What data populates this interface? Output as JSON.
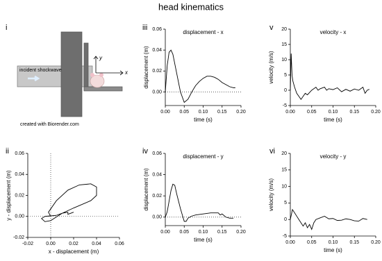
{
  "title": "head kinematics",
  "diagram": {
    "panel": "i",
    "shock_label": "incident shockwave",
    "credit": "created with Biorender.com",
    "axis_x": "x",
    "axis_y": "y"
  },
  "chart_data": [
    {
      "type": "line",
      "panel": "iii",
      "title": "displacement - x",
      "xlabel": "time (s)",
      "ylabel": "displacement (m)",
      "color": "#000000",
      "zero_line": true,
      "x": [
        0,
        0.005,
        0.01,
        0.015,
        0.02,
        0.03,
        0.04,
        0.05,
        0.06,
        0.07,
        0.08,
        0.09,
        0.1,
        0.11,
        0.12,
        0.13,
        0.14,
        0.15,
        0.16,
        0.17,
        0.18,
        0.185
      ],
      "values": [
        0,
        0.025,
        0.038,
        0.04,
        0.036,
        0.018,
        0,
        -0.01,
        -0.007,
        0,
        0.006,
        0.01,
        0.013,
        0.015,
        0.015,
        0.014,
        0.012,
        0.009,
        0.007,
        0.005,
        0.004,
        0.004
      ],
      "xlim": [
        0,
        0.2
      ],
      "xticks": [
        {
          "value": 0,
          "label": "0.00"
        },
        0.05,
        {
          "value": 0.1,
          "label": "0.10"
        },
        0.15,
        {
          "value": 0.2,
          "label": "0.20"
        }
      ],
      "ylim": [
        -0.013,
        0.06
      ],
      "yticks": [
        {
          "value": 0,
          "label": "0.00"
        },
        0.02,
        0.04,
        0.06
      ]
    },
    {
      "type": "line",
      "panel": "v",
      "title": "velocity - x",
      "xlabel": "time (s)",
      "ylabel": "velocity (m/s)",
      "color": "#000000",
      "x": [
        0,
        0.002,
        0.004,
        0.006,
        0.01,
        0.015,
        0.02,
        0.025,
        0.03,
        0.035,
        0.04,
        0.05,
        0.06,
        0.065,
        0.07,
        0.08,
        0.085,
        0.09,
        0.1,
        0.11,
        0.12,
        0.13,
        0.14,
        0.15,
        0.16,
        0.17,
        0.175,
        0.18,
        0.185
      ],
      "values": [
        0,
        12,
        5,
        3,
        1,
        -1,
        -2,
        -3,
        -2,
        -1,
        -1.5,
        0,
        1,
        0,
        0.5,
        1,
        0,
        0.5,
        0.2,
        0.8,
        -0.5,
        0.3,
        -0.3,
        0.4,
        0,
        1,
        -1,
        0,
        0.3
      ],
      "xlim": [
        0,
        0.2
      ],
      "xticks": [
        {
          "value": 0,
          "label": "0.00"
        },
        0.05,
        {
          "value": 0.1,
          "label": "0.10"
        },
        0.15,
        {
          "value": 0.2,
          "label": "0.20"
        }
      ],
      "ylim": [
        -5,
        20
      ],
      "yticks": [
        -5,
        0,
        5,
        10,
        15,
        20
      ]
    },
    {
      "type": "line",
      "panel": "ii",
      "xlabel": "x - displacement (m)",
      "ylabel": "y - displacement (m)",
      "color": "#000000",
      "zero_line": true,
      "x": [
        0,
        -0.002,
        0.005,
        0.015,
        0.025,
        0.035,
        0.04,
        0.04,
        0.035,
        0.02,
        0.01,
        0,
        -0.005,
        -0.008,
        -0.005,
        0.005,
        0.01,
        0.015,
        0.015,
        0.02
      ],
      "values": [
        0,
        0.004,
        0.015,
        0.025,
        0.03,
        0.031,
        0.028,
        0.02,
        0.015,
        0.008,
        0.003,
        -0.004,
        -0.005,
        -0.002,
        0,
        0.001,
        0.003,
        0.004,
        0.002,
        0.004
      ],
      "xlim": [
        -0.02,
        0.06
      ],
      "xticks": [
        -0.02,
        {
          "value": 0,
          "label": "0.00"
        },
        0.02,
        0.04,
        0.06
      ],
      "ylim": [
        -0.02,
        0.06
      ],
      "yticks": [
        -0.02,
        {
          "value": 0,
          "label": "0.00"
        },
        0.02,
        0.04,
        0.06
      ]
    },
    {
      "type": "line",
      "panel": "iv",
      "title": "displacement - y",
      "xlabel": "time (s)",
      "ylabel": "displacement (m)",
      "color": "#000000",
      "zero_line": true,
      "x": [
        0,
        0.005,
        0.01,
        0.015,
        0.02,
        0.025,
        0.03,
        0.04,
        0.045,
        0.05,
        0.055,
        0.06,
        0.07,
        0.08,
        0.1,
        0.12,
        0.14,
        0.145,
        0.15,
        0.16,
        0.17,
        0.18
      ],
      "values": [
        0,
        0.005,
        0.015,
        0.025,
        0.031,
        0.03,
        0.022,
        0.008,
        0.002,
        -0.004,
        -0.004,
        -0.001,
        0.001,
        0.002,
        0.003,
        0.004,
        0.004,
        0.002,
        0.003,
        0,
        -0.001,
        -0.001
      ],
      "xlim": [
        0,
        0.2
      ],
      "xticks": [
        {
          "value": 0,
          "label": "0.00"
        },
        0.05,
        {
          "value": 0.1,
          "label": "0.10"
        },
        0.15,
        {
          "value": 0.2,
          "label": "0.20"
        }
      ],
      "ylim": [
        -0.008,
        0.06
      ],
      "yticks": [
        {
          "value": 0,
          "label": "0.00"
        },
        0.02,
        0.04,
        0.06
      ]
    },
    {
      "type": "line",
      "panel": "vi",
      "title": "velocity - y",
      "xlabel": "time (s)",
      "ylabel": "velocity (m/s)",
      "color": "#000000",
      "x": [
        0,
        0.005,
        0.01,
        0.015,
        0.02,
        0.025,
        0.03,
        0.035,
        0.04,
        0.045,
        0.05,
        0.055,
        0.06,
        0.07,
        0.08,
        0.09,
        0.1,
        0.11,
        0.12,
        0.13,
        0.14,
        0.15,
        0.16,
        0.17,
        0.18
      ],
      "values": [
        0,
        3,
        2,
        1,
        0,
        -1,
        -2,
        -1,
        -2.5,
        -1.5,
        -3,
        -1,
        0,
        0.5,
        1,
        0.2,
        0.3,
        -0.3,
        -0.2,
        0.2,
        0,
        -0.4,
        -0.5,
        0.3,
        0
      ],
      "xlim": [
        0,
        0.2
      ],
      "xticks": [
        {
          "value": 0,
          "label": "0.00"
        },
        0.05,
        {
          "value": 0.1,
          "label": "0.10"
        },
        0.15,
        {
          "value": 0.2,
          "label": "0.20"
        }
      ],
      "ylim": [
        -5,
        20
      ],
      "yticks": [
        -5,
        0,
        5,
        10,
        15,
        20
      ]
    }
  ]
}
